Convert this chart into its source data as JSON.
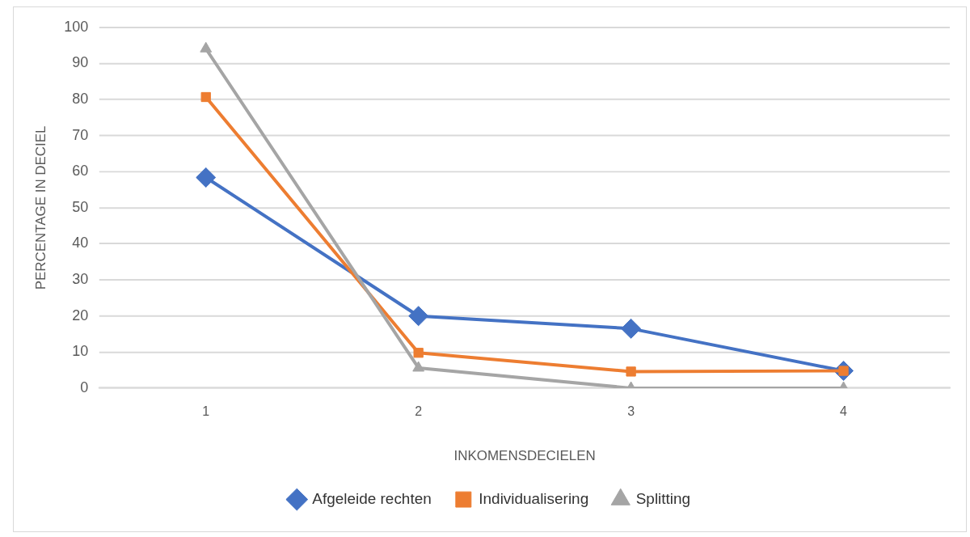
{
  "chart_data": {
    "type": "line",
    "xlabel": "INKOMENSDECIELEN",
    "ylabel": "PERCENTAGE IN DECIEL",
    "categories": [
      "1",
      "2",
      "3",
      "4"
    ],
    "ylim": [
      0,
      100
    ],
    "yticks": [
      0,
      10,
      20,
      30,
      40,
      50,
      60,
      70,
      80,
      90,
      100
    ],
    "grid": "y",
    "legend": "bottom",
    "line_style": "solid",
    "series": [
      {
        "name": "Afgeleide rechten",
        "color": "#4472c4",
        "marker": "diamond",
        "values": [
          58.4,
          20.0,
          16.5,
          4.8
        ]
      },
      {
        "name": "Individualisering",
        "color": "#ed7d31",
        "marker": "square",
        "values": [
          80.7,
          9.8,
          4.6,
          4.8
        ]
      },
      {
        "name": "Splitting",
        "color": "#a5a5a5",
        "marker": "triangle",
        "values": [
          94.1,
          5.6,
          0,
          0
        ]
      }
    ]
  }
}
